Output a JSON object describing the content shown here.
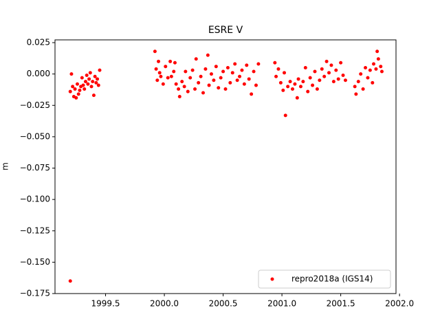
{
  "chart_data": {
    "type": "scatter",
    "title": "ESRE V",
    "y_label": "m",
    "xlim": [
      1999.07,
      2001.97
    ],
    "ylim": [
      -0.175,
      0.0272
    ],
    "xticks": [
      1999.5,
      {
        "value": 2000.0,
        "label": "2000.0"
      },
      2000.5,
      {
        "value": 2001.0,
        "label": "2001.0"
      },
      2001.5,
      {
        "value": 2002.0,
        "label": "2002.0"
      }
    ],
    "yticks": [
      {
        "value": 0.025,
        "label": "0.025"
      },
      {
        "value": 0.0,
        "label": "0.000"
      },
      {
        "value": -0.025,
        "label": "−0.025"
      },
      {
        "value": -0.05,
        "label": "−0.050"
      },
      {
        "value": -0.075,
        "label": "−0.075"
      },
      {
        "value": -0.1,
        "label": "−0.100"
      },
      {
        "value": -0.125,
        "label": "−0.125"
      },
      {
        "value": -0.15,
        "label": "−0.150"
      },
      {
        "value": -0.175,
        "label": "−0.175"
      }
    ],
    "grid": false,
    "legend": "lower right",
    "series": [
      {
        "name": "repro2018a (IGS14)",
        "color": "#ff0000",
        "x": [
          1999.2,
          1999.2,
          1999.21,
          1999.22,
          1999.23,
          1999.24,
          1999.25,
          1999.26,
          1999.27,
          1999.28,
          1999.29,
          1999.3,
          1999.31,
          1999.32,
          1999.33,
          1999.34,
          1999.35,
          1999.36,
          1999.37,
          1999.38,
          1999.39,
          1999.4,
          1999.41,
          1999.42,
          1999.43,
          1999.44,
          1999.45,
          1999.92,
          1999.93,
          1999.94,
          1999.95,
          1999.96,
          1999.97,
          1999.99,
          2000.01,
          2000.03,
          2000.05,
          2000.06,
          2000.08,
          2000.09,
          2000.1,
          2000.12,
          2000.13,
          2000.15,
          2000.17,
          2000.18,
          2000.2,
          2000.22,
          2000.24,
          2000.26,
          2000.27,
          2000.29,
          2000.31,
          2000.33,
          2000.35,
          2000.37,
          2000.38,
          2000.4,
          2000.42,
          2000.44,
          2000.46,
          2000.48,
          2000.5,
          2000.52,
          2000.54,
          2000.56,
          2000.58,
          2000.6,
          2000.62,
          2000.64,
          2000.66,
          2000.68,
          2000.7,
          2000.72,
          2000.74,
          2000.76,
          2000.78,
          2000.8,
          2000.94,
          2000.95,
          2000.97,
          2000.99,
          2001.01,
          2001.02,
          2001.03,
          2001.05,
          2001.07,
          2001.09,
          2001.11,
          2001.13,
          2001.14,
          2001.16,
          2001.18,
          2001.2,
          2001.22,
          2001.24,
          2001.26,
          2001.28,
          2001.3,
          2001.32,
          2001.34,
          2001.36,
          2001.38,
          2001.4,
          2001.42,
          2001.44,
          2001.46,
          2001.48,
          2001.5,
          2001.52,
          2001.54,
          2001.62,
          2001.63,
          2001.65,
          2001.67,
          2001.69,
          2001.71,
          2001.73,
          2001.75,
          2001.77,
          2001.78,
          2001.8,
          2001.81,
          2001.82,
          2001.84,
          2001.85
        ],
        "values": [
          -0.165,
          -0.014,
          0.0,
          -0.01,
          -0.018,
          -0.012,
          -0.019,
          -0.008,
          -0.016,
          -0.013,
          -0.01,
          -0.003,
          -0.009,
          -0.012,
          -0.006,
          -0.001,
          -0.008,
          -0.004,
          0.001,
          -0.01,
          -0.006,
          -0.017,
          -0.002,
          -0.007,
          -0.004,
          -0.009,
          0.003,
          0.018,
          0.004,
          -0.005,
          0.01,
          0.001,
          -0.002,
          -0.008,
          0.006,
          -0.003,
          0.01,
          -0.002,
          0.002,
          0.009,
          -0.008,
          -0.012,
          -0.018,
          -0.006,
          -0.01,
          0.002,
          -0.014,
          -0.003,
          0.003,
          -0.012,
          0.012,
          -0.007,
          -0.002,
          -0.015,
          0.004,
          0.015,
          -0.009,
          0.0,
          -0.005,
          0.006,
          -0.011,
          -0.003,
          0.002,
          -0.012,
          0.005,
          -0.007,
          0.001,
          0.008,
          -0.005,
          -0.002,
          0.003,
          -0.008,
          0.007,
          -0.004,
          -0.016,
          0.002,
          -0.009,
          0.008,
          0.009,
          -0.002,
          0.004,
          -0.007,
          -0.013,
          0.001,
          -0.033,
          -0.01,
          -0.006,
          -0.012,
          -0.008,
          -0.019,
          -0.004,
          -0.01,
          -0.006,
          0.005,
          -0.014,
          -0.003,
          -0.009,
          0.002,
          -0.012,
          -0.005,
          0.004,
          -0.002,
          0.01,
          0.001,
          0.007,
          -0.006,
          0.003,
          -0.004,
          0.009,
          -0.001,
          -0.005,
          -0.01,
          -0.016,
          -0.006,
          0.0,
          -0.012,
          0.005,
          -0.003,
          0.003,
          -0.007,
          0.008,
          0.004,
          0.018,
          0.012,
          0.006,
          0.002
        ]
      }
    ]
  }
}
